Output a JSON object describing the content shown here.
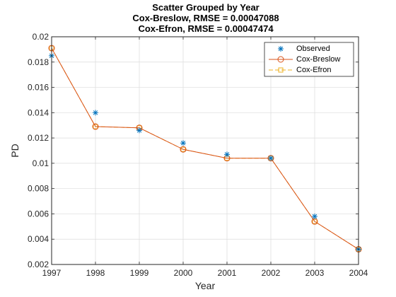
{
  "chart_data": {
    "type": "line",
    "title": [
      "Scatter Grouped by Year",
      "Cox-Breslow, RMSE = 0.00047088",
      "Cox-Efron, RMSE = 0.00047474"
    ],
    "xlabel": "Year",
    "ylabel": "PD",
    "xlim": [
      1997,
      2004
    ],
    "ylim": [
      0.002,
      0.02
    ],
    "xticks": [
      "1997",
      "1998",
      "1999",
      "2000",
      "2001",
      "2002",
      "2003",
      "2004"
    ],
    "yticks": [
      "0.002",
      "0.004",
      "0.006",
      "0.008",
      "0.01",
      "0.012",
      "0.014",
      "0.016",
      "0.018",
      "0.02"
    ],
    "grid": true,
    "legend_position": "top-right",
    "x": [
      1997,
      1998,
      1999,
      2000,
      2001,
      2002,
      2003,
      2004
    ],
    "series": [
      {
        "name": "Observed",
        "style": "scatter",
        "marker": "asterisk",
        "color": "#0072BD",
        "values": [
          0.0185,
          0.014,
          0.0126,
          0.0116,
          0.0107,
          0.0104,
          0.0058,
          0.0032
        ]
      },
      {
        "name": "Cox-Breslow",
        "style": "line",
        "marker": "circle",
        "color": "#D95319",
        "values": [
          0.0191,
          0.0129,
          0.0128,
          0.0111,
          0.0104,
          0.0104,
          0.0054,
          0.0032
        ]
      },
      {
        "name": "Cox-Efron",
        "style": "dashed-line",
        "marker": "square",
        "color": "#EDB120",
        "values": [
          0.0191,
          0.0129,
          0.0128,
          0.0111,
          0.0104,
          0.0104,
          0.0054,
          0.0032
        ]
      }
    ]
  }
}
